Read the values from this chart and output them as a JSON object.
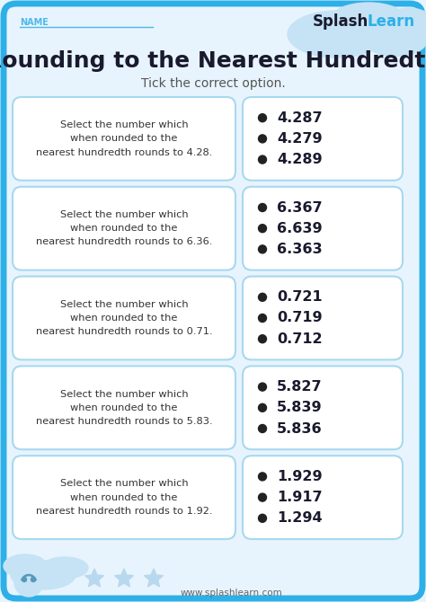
{
  "title": "Rounding to the Nearest Hundredth",
  "subtitle": "Tick the correct option.",
  "name_label": "NAME",
  "background_color": "#e8f4fd",
  "border_color": "#2db0e8",
  "card_bg": "#ffffff",
  "card_border": "#a8d8f0",
  "title_color": "#1a1a2e",
  "subtitle_color": "#555555",
  "questions": [
    {
      "prompt": "Select the number which\nwhen rounded to the\nnearest hundredth rounds to 4.28.",
      "options": [
        "4.287",
        "4.279",
        "4.289"
      ]
    },
    {
      "prompt": "Select the number which\nwhen rounded to the\nnearest hundredth rounds to 6.36.",
      "options": [
        "6.367",
        "6.639",
        "6.363"
      ]
    },
    {
      "prompt": "Select the number which\nwhen rounded to the\nnearest hundredth rounds to 0.71.",
      "options": [
        "0.721",
        "0.719",
        "0.712"
      ]
    },
    {
      "prompt": "Select the number which\nwhen rounded to the\nnearest hundredth rounds to 5.83.",
      "options": [
        "5.827",
        "5.839",
        "5.836"
      ]
    },
    {
      "prompt": "Select the number which\nwhen rounded to the\nnearest hundredth rounds to 1.92.",
      "options": [
        "1.929",
        "1.917",
        "1.294"
      ]
    }
  ],
  "website": "www.splashlearn.com",
  "question_text_color": "#333333",
  "option_text_color": "#1a1a2e",
  "bullet_color": "#222222",
  "cloud_color": "#c5e3f5",
  "star_color": "#b8d8ee",
  "name_color": "#4db8e8",
  "splash_color": "#1a1a2e",
  "learn_color": "#2db0e8",
  "website_color": "#666666"
}
